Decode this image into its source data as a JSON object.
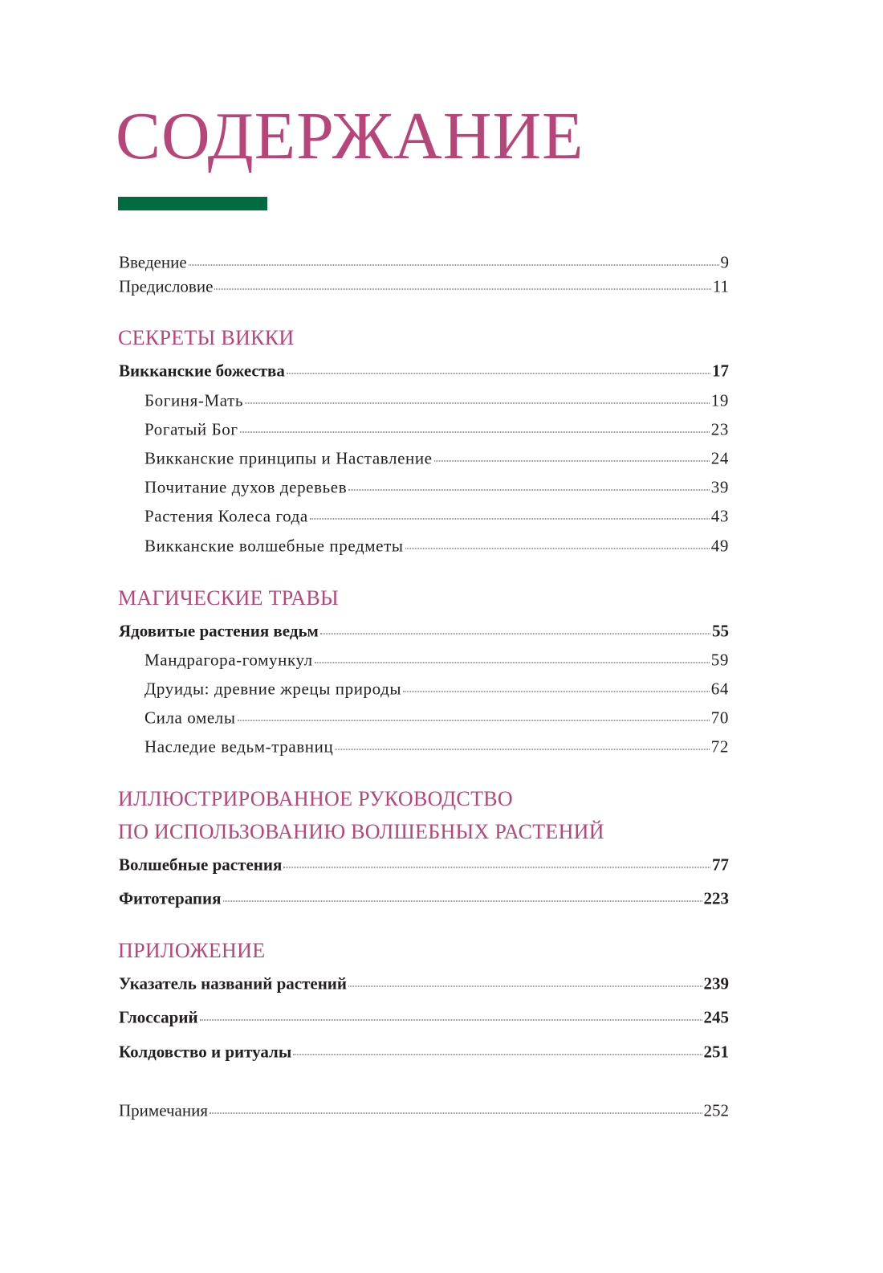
{
  "title": "СОДЕРЖАНИЕ",
  "colors": {
    "heading": "#b8457a",
    "accent_bar": "#006a40"
  },
  "intro": [
    {
      "label": "Введение",
      "page": "9"
    },
    {
      "label": "Предисловие",
      "page": "11"
    }
  ],
  "sections": [
    {
      "heading": "СЕКРЕТЫ ВИККИ",
      "chapters": [
        {
          "label": "Викканские божества",
          "page": "17"
        }
      ],
      "items": [
        {
          "label": "Богиня-Мать",
          "page": "19"
        },
        {
          "label": "Рогатый Бог",
          "page": "23"
        },
        {
          "label": "Викканские принципы и Наставление",
          "page": "24"
        },
        {
          "label": "Почитание духов деревьев",
          "page": "39"
        },
        {
          "label": "Растения Колеса года",
          "page": "43"
        },
        {
          "label": "Викканские волшебные предметы",
          "page": "49"
        }
      ]
    },
    {
      "heading": "МАГИЧЕСКИЕ ТРАВЫ",
      "chapters": [
        {
          "label": "Ядовитые растения ведьм",
          "page": "55"
        }
      ],
      "items": [
        {
          "label": "Мандрагора-гомункул",
          "page": "59"
        },
        {
          "label": "Друиды: древние жрецы природы",
          "page": "64"
        },
        {
          "label": "Сила омелы",
          "page": "70"
        },
        {
          "label": "Наследие ведьм-травниц",
          "page": "72"
        }
      ]
    },
    {
      "heading": "ИЛЛЮСТРИРОВАННОЕ РУКОВОДСТВО",
      "heading2": "ПО ИСПОЛЬЗОВАНИЮ ВОЛШЕБНЫХ РАСТЕНИЙ",
      "chapters": [
        {
          "label": "Волшебные растения",
          "page": "77"
        },
        {
          "label": "Фитотерапия",
          "page": "223"
        }
      ]
    },
    {
      "heading": "ПРИЛОЖЕНИЕ",
      "chapters": [
        {
          "label": "Указатель названий растений",
          "page": "239"
        },
        {
          "label": "Глоссарий",
          "page": "245"
        },
        {
          "label": "Колдовство и ритуалы",
          "page": "251"
        }
      ]
    }
  ],
  "notes": {
    "label": "Примечания",
    "page": "252"
  }
}
